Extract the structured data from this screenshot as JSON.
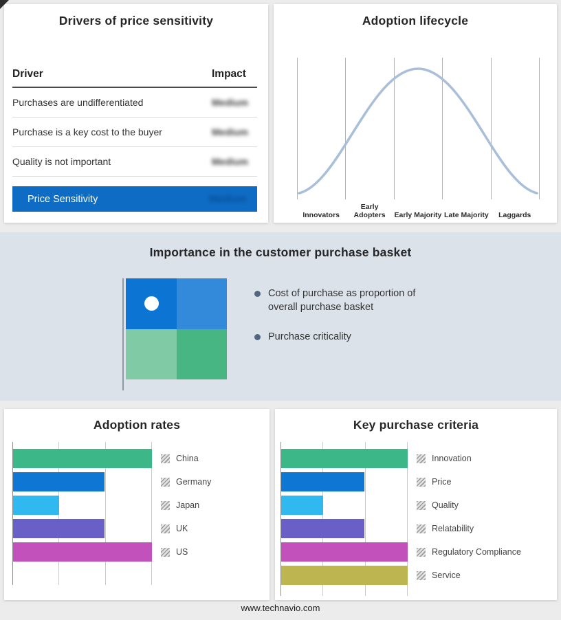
{
  "colors": {
    "highlight_blue": "#0f6cc4",
    "band_background": "#dbe2ea",
    "curve": "#a9bed8"
  },
  "price_sensitivity": {
    "title": "Drivers of price sensitivity",
    "columns": {
      "driver": "Driver",
      "impact": "Impact"
    },
    "rows": [
      {
        "driver": "Purchases are undifferentiated",
        "impact": "Medium"
      },
      {
        "driver": "Purchase is a key cost to the buyer",
        "impact": "Medium"
      },
      {
        "driver": "Quality is not important",
        "impact": "Medium"
      }
    ],
    "summary_row": {
      "label": "Price Sensitivity",
      "impact": "Medium"
    },
    "impact_values_obscured": true
  },
  "adoption_lifecycle": {
    "title": "Adoption lifecycle",
    "stages": [
      "Innovators",
      "Early Adopters",
      "Early Majority",
      "Late Majority",
      "Laggards"
    ]
  },
  "purchase_basket": {
    "title": "Importance in the customer purchase basket",
    "bullets": [
      "Cost of purchase as proportion of overall purchase basket",
      "Purchase criticality"
    ],
    "quadrant_colors": {
      "top_left": "#0c74d2",
      "top_right": "#3389da",
      "bottom_left": "#80cba5",
      "bottom_right": "#47b682"
    }
  },
  "chart_data": [
    {
      "type": "bar",
      "orientation": "horizontal",
      "title": "Adoption rates",
      "categories": [
        "China",
        "Germany",
        "Japan",
        "UK",
        "US"
      ],
      "values": [
        100,
        66,
        33,
        66,
        100
      ],
      "colors": [
        "#3bb788",
        "#0e76d3",
        "#2fb9f0",
        "#6a5fc7",
        "#c351bb"
      ],
      "xlim": [
        0,
        100
      ],
      "gridlines": [
        0,
        33.33,
        66.67,
        100
      ],
      "legend_position": "right",
      "legend_swatch_style": "hatched-gray"
    },
    {
      "type": "bar",
      "orientation": "horizontal",
      "title": "Key purchase criteria",
      "categories": [
        "Innovation",
        "Price",
        "Quality",
        "Relatability",
        "Regulatory Compliance",
        "Service"
      ],
      "values": [
        100,
        66,
        33,
        66,
        100,
        100
      ],
      "colors": [
        "#3bb788",
        "#0e76d3",
        "#2fb9f0",
        "#6a5fc7",
        "#c351bb",
        "#bdb650"
      ],
      "xlim": [
        0,
        100
      ],
      "gridlines": [
        0,
        33.33,
        66.67,
        100
      ],
      "legend_position": "right",
      "legend_swatch_style": "hatched-gray"
    }
  ],
  "footer": {
    "url": "www.technavio.com"
  }
}
